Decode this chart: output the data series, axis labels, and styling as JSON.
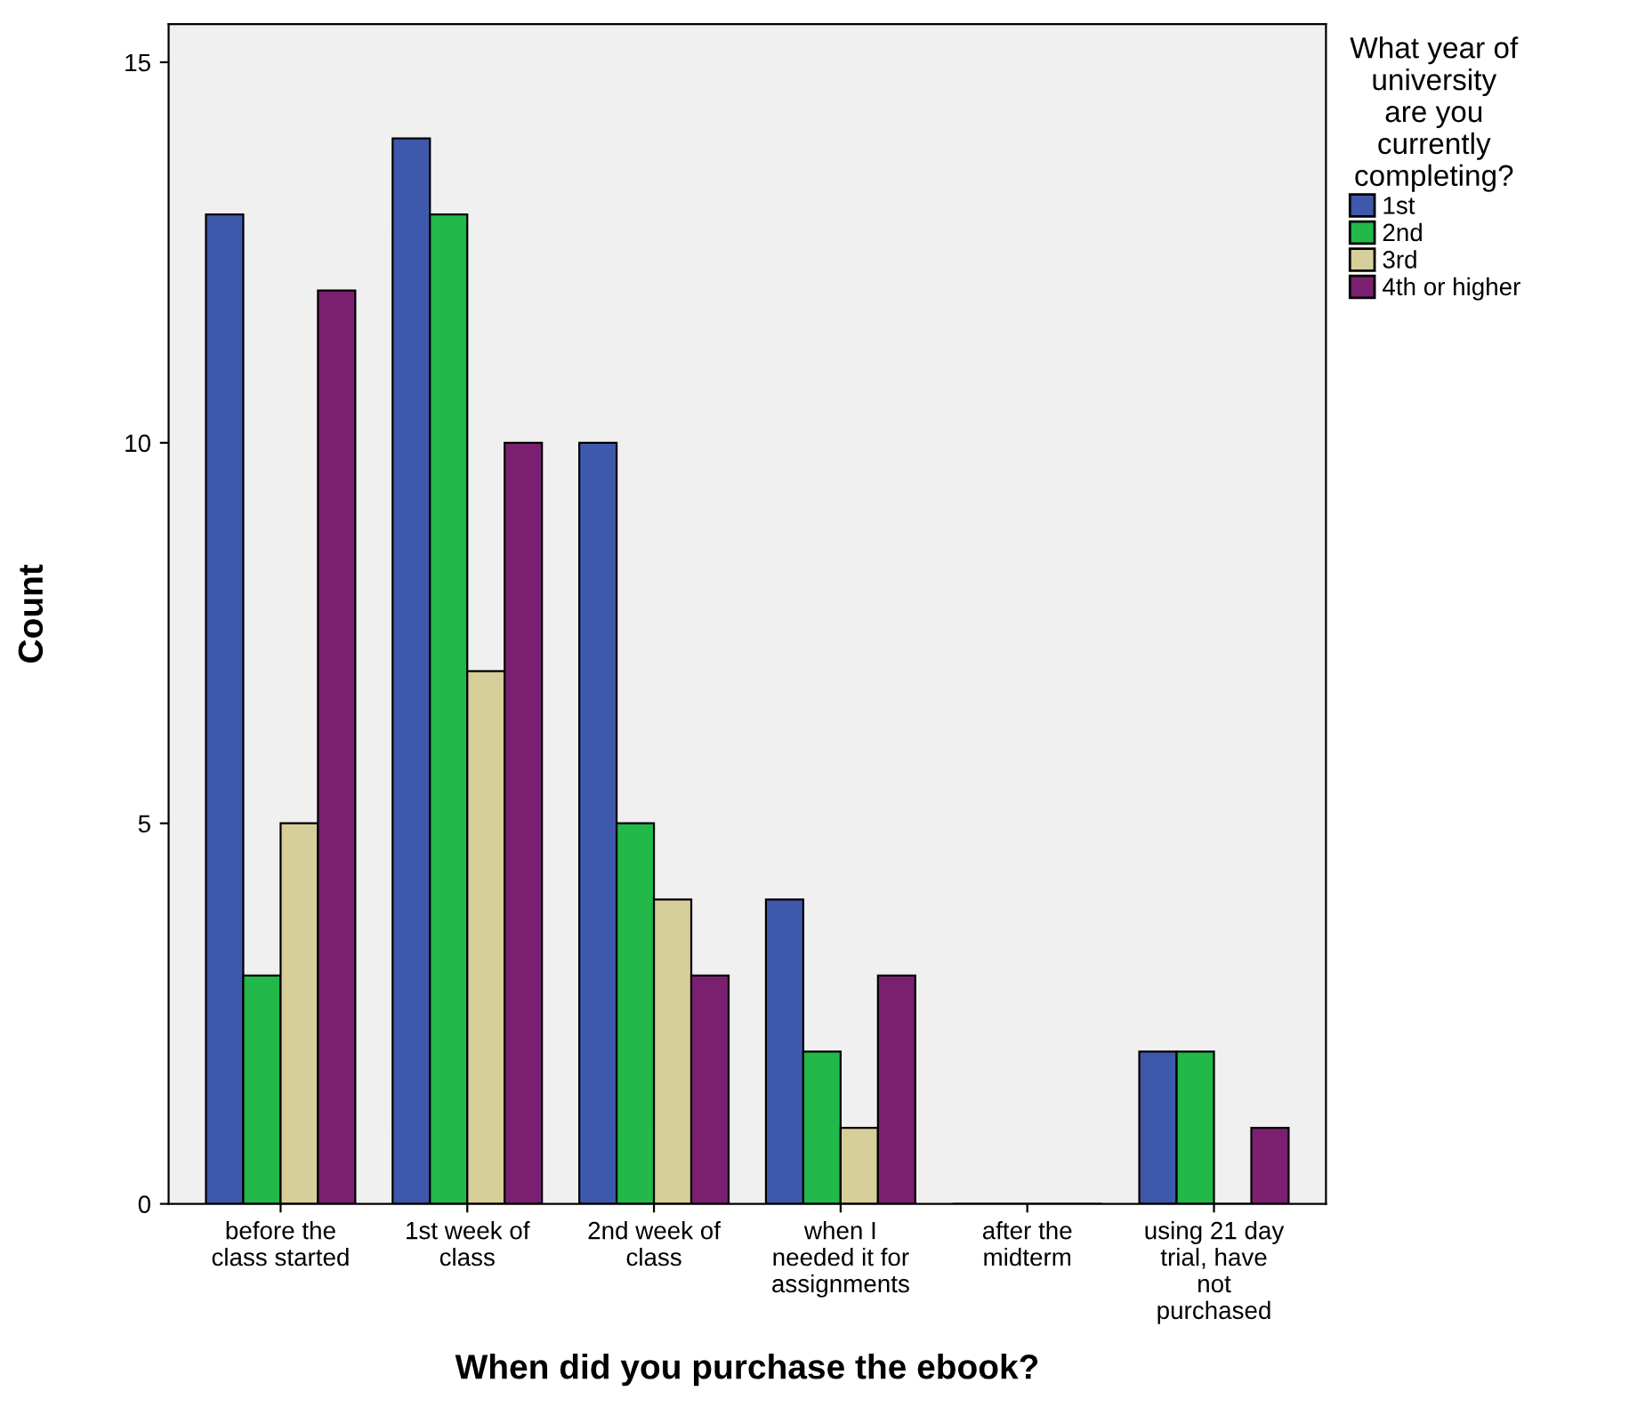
{
  "chart_data": {
    "type": "bar",
    "xlabel": "When did you purchase the ebook?",
    "ylabel": "Count",
    "legend_title": "What year of\nuniversity\nare you\ncurrently\ncompleting?",
    "categories": [
      "before the\nclass started",
      "1st week of\nclass",
      "2nd week of\nclass",
      "when I\nneeded it for\nassignments",
      "after the\nmidterm",
      "using 21 day\ntrial, have\nnot\npurchased"
    ],
    "series": [
      {
        "name": "1st",
        "color": "#3e58ac",
        "values": [
          13,
          14,
          10,
          4,
          0,
          2
        ]
      },
      {
        "name": "2nd",
        "color": "#22b84a",
        "values": [
          3,
          13,
          5,
          2,
          0,
          2
        ]
      },
      {
        "name": "3rd",
        "color": "#d6cf9a",
        "values": [
          5,
          7,
          4,
          1,
          0,
          0
        ]
      },
      {
        "name": "4th or higher",
        "color": "#7b2070",
        "values": [
          12,
          10,
          3,
          3,
          0,
          1
        ]
      }
    ],
    "ylim": [
      0,
      15.5
    ],
    "yticks": [
      0,
      5,
      10,
      15
    ],
    "grid": false,
    "legend": "top right"
  }
}
